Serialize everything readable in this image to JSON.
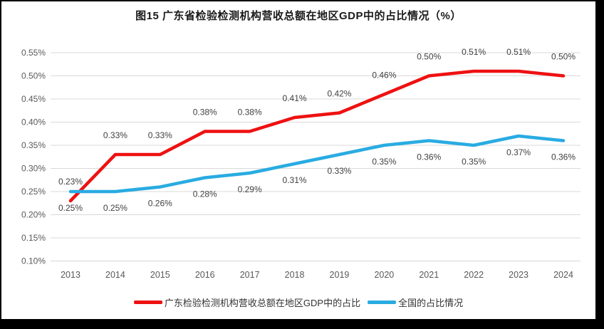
{
  "frame": {
    "background": "#000000"
  },
  "chart_data": {
    "type": "line",
    "title": "图15  广东省检验检测机构营收总额在地区GDP中的占比情况（%）",
    "xlabel": "",
    "ylabel": "",
    "categories": [
      "2013",
      "2014",
      "2015",
      "2016",
      "2017",
      "2018",
      "2019",
      "2020",
      "2021",
      "2022",
      "2023",
      "2024"
    ],
    "series": [
      {
        "name": "广东检验检测机构营收总额在地区GDP中的占比",
        "color": "#ee1111",
        "values": [
          0.23,
          0.33,
          0.33,
          0.38,
          0.38,
          0.41,
          0.42,
          0.46,
          0.5,
          0.51,
          0.51,
          0.5
        ],
        "labels": [
          "0.23%",
          "0.33%",
          "0.33%",
          "0.38%",
          "0.38%",
          "0.41%",
          "0.42%",
          "0.46%",
          "0.50%",
          "0.51%",
          "0.51%",
          "0.50%"
        ],
        "label_position": "above"
      },
      {
        "name": "全国的占比情况",
        "color": "#29abe2",
        "values": [
          0.25,
          0.25,
          0.26,
          0.28,
          0.29,
          0.31,
          0.33,
          0.35,
          0.36,
          0.35,
          0.37,
          0.36
        ],
        "labels": [
          "0.25%",
          "0.25%",
          "0.26%",
          "0.28%",
          "0.29%",
          "0.31%",
          "0.33%",
          "0.35%",
          "0.36%",
          "0.35%",
          "0.37%",
          "0.36%"
        ],
        "label_position": "below"
      }
    ],
    "y_ticks": [
      "0.55%",
      "0.50%",
      "0.45%",
      "0.40%",
      "0.35%",
      "0.30%",
      "0.25%",
      "0.20%",
      "0.15%",
      "0.10%"
    ],
    "y_tick_values": [
      0.55,
      0.5,
      0.45,
      0.4,
      0.35,
      0.3,
      0.25,
      0.2,
      0.15,
      0.1
    ],
    "ylim": [
      0.1,
      0.55
    ],
    "grid": true,
    "grid_color": "#d9d9d9",
    "tick_color": "#595959",
    "data_label_color": "#404040",
    "legend_position": "bottom"
  }
}
